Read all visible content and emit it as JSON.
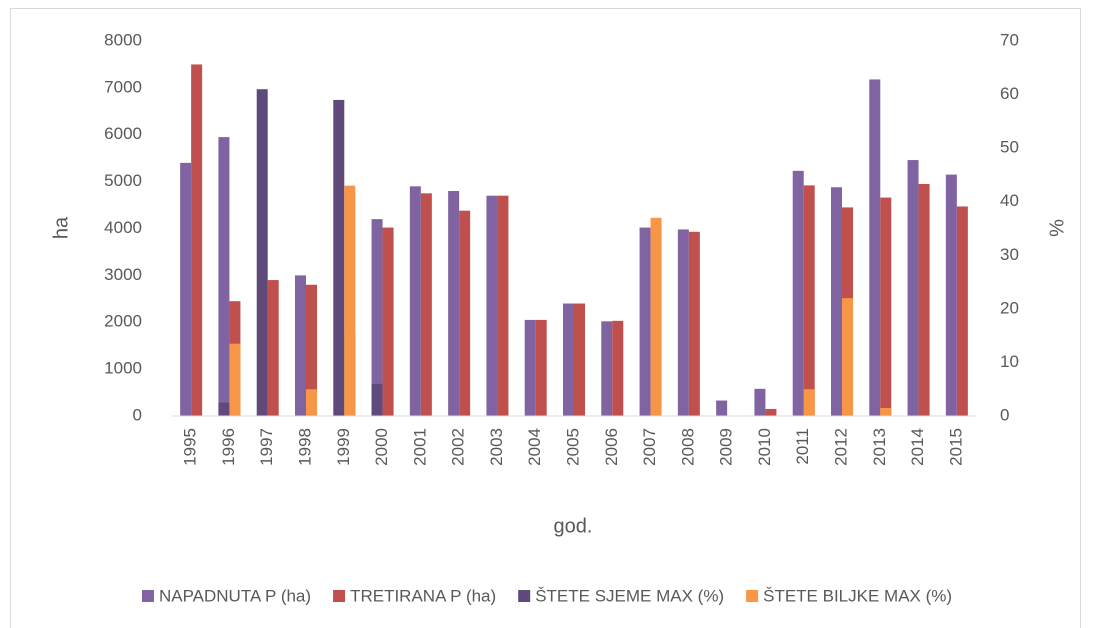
{
  "chart_data": {
    "type": "bar",
    "xlabel": "god.",
    "ylabel": "ha",
    "y2label": "%",
    "categories": [
      "1995",
      "1996",
      "1997",
      "1998",
      "1999",
      "2000",
      "2001",
      "2002",
      "2003",
      "2004",
      "2005",
      "2006",
      "2007",
      "2008",
      "2009",
      "2010",
      "2011",
      "2012",
      "2013",
      "2014",
      "2015"
    ],
    "series": [
      {
        "name": "NAPADNUTA P (ha)",
        "color": "#8064a2",
        "values": [
          5400,
          5950,
          null,
          3000,
          null,
          4200,
          4900,
          4800,
          4700,
          2050,
          2400,
          2020,
          4020,
          3980,
          330,
          580,
          5230,
          4880,
          7180,
          5460,
          5150
        ]
      },
      {
        "name": "TRETIRANA P (ha)",
        "color": "#c0504d",
        "values": [
          7500,
          2450,
          2900,
          2800,
          1750,
          4020,
          4750,
          4380,
          4700,
          2050,
          2400,
          2030,
          null,
          3930,
          null,
          150,
          4920,
          4450,
          4660,
          4950,
          4470
        ]
      },
      {
        "name": "ŠTETE SJEME MAX (%)",
        "color": "#604a7b",
        "axis": "y2",
        "values": [
          null,
          2.5,
          61,
          null,
          59,
          6,
          null,
          null,
          null,
          null,
          null,
          null,
          null,
          null,
          null,
          null,
          null,
          null,
          null,
          null,
          null
        ]
      },
      {
        "name": "ŠTETE BILJKE MAX (%)",
        "color": "#f79646",
        "axis": "y2",
        "values": [
          null,
          13.5,
          null,
          5,
          43,
          null,
          null,
          null,
          null,
          null,
          null,
          null,
          37,
          null,
          null,
          null,
          5,
          22,
          1.5,
          null,
          null
        ]
      }
    ],
    "ylim": [
      0,
      8000
    ],
    "yticks": [
      0,
      1000,
      2000,
      3000,
      4000,
      5000,
      6000,
      7000,
      8000
    ],
    "y2lim": [
      0,
      70
    ],
    "y2ticks": [
      0,
      10,
      20,
      30,
      40,
      50,
      60,
      70
    ],
    "grid": false,
    "legend": "bottom"
  }
}
